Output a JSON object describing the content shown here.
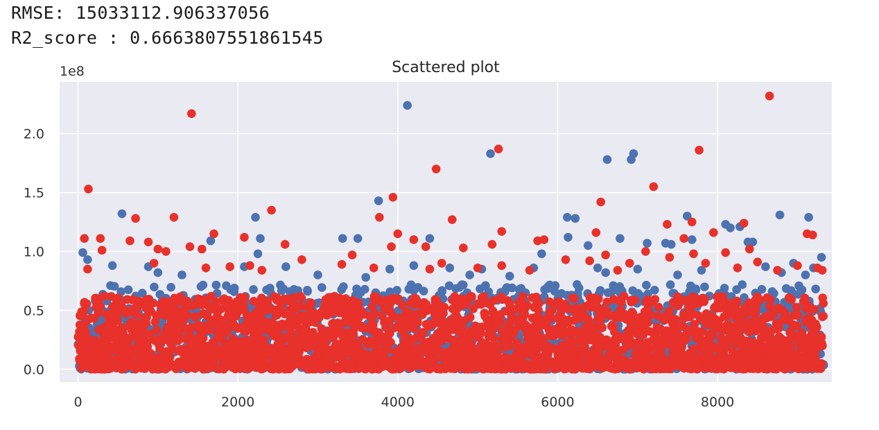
{
  "output": {
    "rmse_line": "RMSE: 15033112.906337056",
    "r2_line": "R2_score : 0.6663807551861545"
  },
  "chart_data": {
    "type": "scatter",
    "title": "Scattered plot",
    "xlabel": "",
    "ylabel": "",
    "offset_text": "1e8",
    "xlim": [
      -230,
      9430
    ],
    "ylim": [
      -0.11,
      2.44
    ],
    "y_scale": 100000000,
    "x_ticks": [
      0,
      2000,
      4000,
      6000,
      8000
    ],
    "x_tick_labels": [
      "0",
      "2000",
      "4000",
      "6000",
      "8000"
    ],
    "y_ticks": [
      0.0,
      0.5,
      1.0,
      1.5,
      2.0
    ],
    "y_tick_labels": [
      "0.0",
      "0.5",
      "1.0",
      "1.5",
      "2.0"
    ],
    "grid": true,
    "style": "seaborn darkgrid",
    "colors": {
      "background": "#eaeaf2",
      "grid": "#ffffff",
      "series_blue": "#4c72b0",
      "series_red": "#e8312a"
    },
    "bulk": {
      "x_range": [
        0,
        9330
      ],
      "dense_y_max": 0.62,
      "note_shape": "dense band of overlapping points from 0 to ~0.6e8, red drawn on top of blue"
    },
    "series": [
      {
        "color": "#4c72b0",
        "outliers": [
          [
            4120,
            2.24
          ],
          [
            5160,
            1.83
          ],
          [
            6950,
            1.83
          ],
          [
            6920,
            1.78
          ],
          [
            6620,
            1.78
          ],
          [
            3760,
            1.43
          ],
          [
            550,
            1.32
          ],
          [
            2220,
            1.29
          ],
          [
            6120,
            1.29
          ],
          [
            6220,
            1.28
          ],
          [
            8780,
            1.31
          ],
          [
            9140,
            1.29
          ],
          [
            7620,
            1.3
          ],
          [
            8100,
            1.23
          ],
          [
            8160,
            1.2
          ],
          [
            8280,
            1.21
          ],
          [
            1660,
            1.09
          ],
          [
            2280,
            1.11
          ],
          [
            3310,
            1.11
          ],
          [
            3500,
            1.11
          ],
          [
            4400,
            1.11
          ],
          [
            6130,
            1.12
          ],
          [
            6780,
            1.11
          ],
          [
            6380,
            1.05
          ],
          [
            7120,
            1.07
          ],
          [
            7350,
            1.07
          ],
          [
            7420,
            1.06
          ],
          [
            7680,
            1.1
          ],
          [
            8380,
            1.08
          ],
          [
            8440,
            1.08
          ],
          [
            60,
            0.99
          ],
          [
            2250,
            0.98
          ],
          [
            5800,
            0.98
          ],
          [
            9300,
            0.95
          ],
          [
            430,
            0.88
          ],
          [
            880,
            0.87
          ],
          [
            2080,
            0.87
          ],
          [
            3900,
            0.85
          ],
          [
            4650,
            0.86
          ],
          [
            5050,
            0.85
          ],
          [
            5700,
            0.86
          ],
          [
            6500,
            0.86
          ],
          [
            7000,
            0.85
          ],
          [
            7800,
            0.84
          ],
          [
            8600,
            0.87
          ],
          [
            8950,
            0.9
          ],
          [
            9200,
            0.86
          ],
          [
            120,
            0.93
          ],
          [
            1000,
            0.82
          ],
          [
            3000,
            0.8
          ],
          [
            4900,
            0.8
          ],
          [
            6600,
            0.82
          ],
          [
            7500,
            0.8
          ],
          [
            8800,
            0.82
          ],
          [
            2600,
            0.87
          ],
          [
            1300,
            0.8
          ],
          [
            5400,
            0.79
          ],
          [
            9100,
            0.8
          ],
          [
            3600,
            0.78
          ],
          [
            4200,
            0.88
          ]
        ]
      },
      {
        "color": "#e8312a",
        "outliers": [
          [
            8650,
            2.32
          ],
          [
            1420,
            2.17
          ],
          [
            5260,
            1.87
          ],
          [
            7770,
            1.86
          ],
          [
            4480,
            1.7
          ],
          [
            7200,
            1.55
          ],
          [
            130,
            1.53
          ],
          [
            3940,
            1.46
          ],
          [
            6540,
            1.42
          ],
          [
            2420,
            1.35
          ],
          [
            720,
            1.28
          ],
          [
            1200,
            1.29
          ],
          [
            3770,
            1.29
          ],
          [
            4680,
            1.27
          ],
          [
            7370,
            1.23
          ],
          [
            7680,
            1.25
          ],
          [
            8330,
            1.24
          ],
          [
            5300,
            1.17
          ],
          [
            1700,
            1.15
          ],
          [
            4000,
            1.15
          ],
          [
            6480,
            1.16
          ],
          [
            7950,
            1.16
          ],
          [
            9120,
            1.15
          ],
          [
            9190,
            1.14
          ],
          [
            80,
            1.11
          ],
          [
            280,
            1.11
          ],
          [
            2080,
            1.12
          ],
          [
            4200,
            1.1
          ],
          [
            5750,
            1.09
          ],
          [
            5830,
            1.1
          ],
          [
            650,
            1.09
          ],
          [
            880,
            1.08
          ],
          [
            1400,
            1.04
          ],
          [
            1550,
            1.02
          ],
          [
            2590,
            1.06
          ],
          [
            3920,
            1.04
          ],
          [
            4350,
            1.04
          ],
          [
            4820,
            1.03
          ],
          [
            5180,
            1.06
          ],
          [
            7580,
            1.11
          ],
          [
            8400,
            1.02
          ],
          [
            8100,
            0.99
          ],
          [
            7100,
            1.0
          ],
          [
            300,
            1.01
          ],
          [
            1000,
            1.02
          ],
          [
            1100,
            1.0
          ],
          [
            6600,
            0.97
          ],
          [
            7700,
            0.98
          ],
          [
            3430,
            0.97
          ],
          [
            950,
            0.9
          ],
          [
            1600,
            0.86
          ],
          [
            2150,
            0.88
          ],
          [
            2800,
            0.93
          ],
          [
            3300,
            0.89
          ],
          [
            4550,
            0.9
          ],
          [
            5300,
            0.88
          ],
          [
            6100,
            0.93
          ],
          [
            6900,
            0.9
          ],
          [
            7400,
            0.95
          ],
          [
            8500,
            0.91
          ],
          [
            9000,
            0.88
          ],
          [
            9250,
            0.86
          ],
          [
            120,
            0.85
          ],
          [
            1900,
            0.87
          ],
          [
            5000,
            0.86
          ],
          [
            6400,
            0.92
          ],
          [
            7850,
            0.9
          ],
          [
            8750,
            0.84
          ],
          [
            2300,
            0.84
          ],
          [
            3700,
            0.86
          ],
          [
            4400,
            0.85
          ],
          [
            5650,
            0.84
          ],
          [
            6750,
            0.84
          ],
          [
            8250,
            0.86
          ],
          [
            9310,
            0.84
          ]
        ]
      }
    ]
  }
}
